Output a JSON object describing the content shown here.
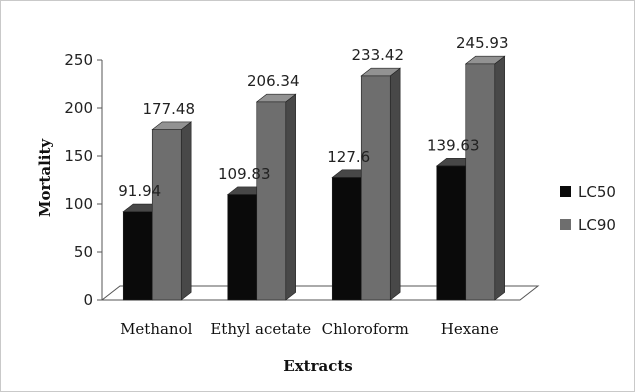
{
  "chart_data": {
    "type": "bar",
    "title": "",
    "xlabel": "Extracts",
    "ylabel": "Mortality",
    "categories": [
      "Methanol",
      "Ethyl acetate",
      "Chloroform",
      "Hexane"
    ],
    "series": [
      {
        "name": "LC50",
        "values": [
          91.94,
          109.83,
          127.6,
          139.63
        ],
        "labels": [
          "91.94",
          "109.83",
          "127.6",
          "139.63"
        ],
        "color": "#0a0a0a"
      },
      {
        "name": "LC90",
        "values": [
          177.48,
          206.34,
          233.42,
          245.93
        ],
        "labels": [
          "177.48",
          "206.34",
          "233.42",
          "245.93"
        ],
        "color": "#6e6e6e"
      }
    ],
    "ylim": [
      0,
      250
    ],
    "yticks": [
      0,
      50,
      100,
      150,
      200,
      250
    ],
    "grid": false,
    "legend_position": "right",
    "style": "3d-clustered-column"
  }
}
